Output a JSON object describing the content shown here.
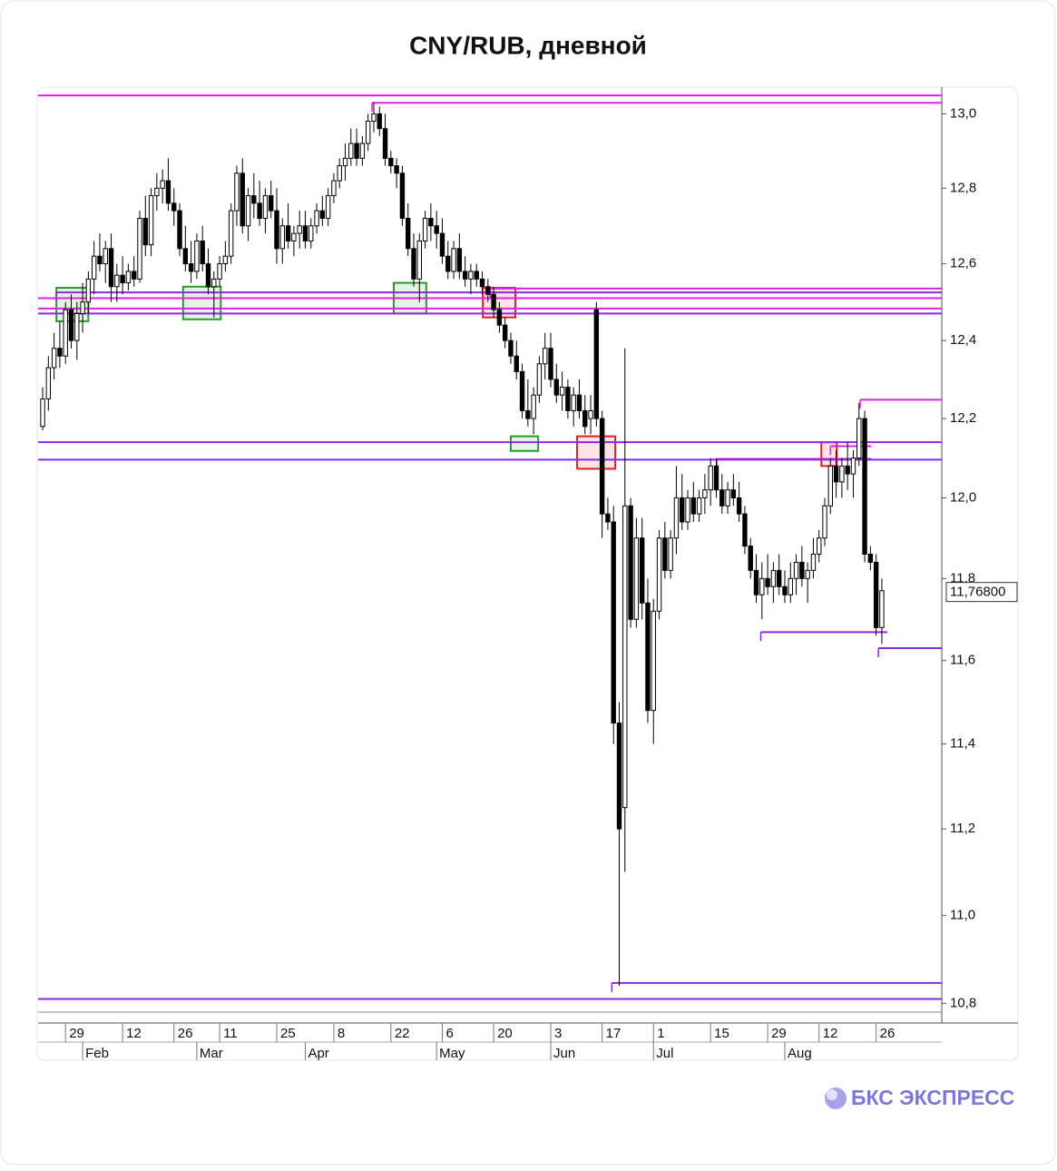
{
  "chart_data": {
    "type": "candlestick",
    "title": "CNY/RUB, дневной",
    "brand": "БКС ЭКСПРЕСС",
    "log_scale": true,
    "up_color": "#ffffff",
    "down_color": "#000000",
    "ylim": [
      10.76,
      13.07
    ],
    "xlim": [
      -0.8,
      157.5
    ],
    "yticks": [
      {
        "value": 10.8,
        "label": "10,8"
      },
      {
        "value": 11.0,
        "label": "11,0"
      },
      {
        "value": 11.2,
        "label": "11,2"
      },
      {
        "value": 11.4,
        "label": "11,4"
      },
      {
        "value": 11.6,
        "label": "11,6"
      },
      {
        "value": 11.8,
        "label": "11,8"
      },
      {
        "value": 12.0,
        "label": "12,0"
      },
      {
        "value": 12.2,
        "label": "12,2"
      },
      {
        "value": 12.4,
        "label": "12,4"
      },
      {
        "value": 12.6,
        "label": "12,6"
      },
      {
        "value": 12.8,
        "label": "12,8"
      },
      {
        "value": 13.0,
        "label": "13,0"
      }
    ],
    "xticks": [
      {
        "value": 4,
        "label": "29"
      },
      {
        "value": 14,
        "label": "12"
      },
      {
        "value": 23,
        "label": "26"
      },
      {
        "value": 31,
        "label": "11"
      },
      {
        "value": 41,
        "label": "25"
      },
      {
        "value": 51,
        "label": "8"
      },
      {
        "value": 61,
        "label": "22"
      },
      {
        "value": 70,
        "label": "6"
      },
      {
        "value": 79,
        "label": "20"
      },
      {
        "value": 89,
        "label": "3"
      },
      {
        "value": 98,
        "label": "17"
      },
      {
        "value": 107,
        "label": "1"
      },
      {
        "value": 117,
        "label": "15"
      },
      {
        "value": 127,
        "label": "29"
      },
      {
        "value": 136,
        "label": "12"
      },
      {
        "value": 146,
        "label": "26"
      }
    ],
    "month_ticks": [
      {
        "value": 7,
        "label": "Feb"
      },
      {
        "value": 27,
        "label": "Mar"
      },
      {
        "value": 46,
        "label": "Apr"
      },
      {
        "value": 69,
        "label": "May"
      },
      {
        "value": 89,
        "label": "Jun"
      },
      {
        "value": 107,
        "label": "Jul"
      },
      {
        "value": 130,
        "label": "Aug"
      }
    ],
    "last_price": {
      "value": 11.768,
      "label": "11,76800"
    },
    "open": [
      12.18,
      12.25,
      12.33,
      12.38,
      12.36,
      12.48,
      12.4,
      12.47,
      12.5,
      12.56,
      12.62,
      12.6,
      12.64,
      12.54,
      12.57,
      12.55,
      12.58,
      12.56,
      12.72,
      12.65,
      12.78,
      12.8,
      12.82,
      12.76,
      12.74,
      12.64,
      12.6,
      12.58,
      12.66,
      12.6,
      12.54,
      12.56,
      12.6,
      12.62,
      12.74,
      12.84,
      12.7,
      12.78,
      12.76,
      12.72,
      12.78,
      12.74,
      12.64,
      12.7,
      12.66,
      12.68,
      12.7,
      12.66,
      12.7,
      12.74,
      12.72,
      12.78,
      12.82,
      12.86,
      12.88,
      12.92,
      12.88,
      12.92,
      12.98,
      13.0,
      12.96,
      12.88,
      12.86,
      12.84,
      12.72,
      12.64,
      12.56,
      12.66,
      12.72,
      12.7,
      12.68,
      12.62,
      12.58,
      12.64,
      12.58,
      12.56,
      12.58,
      12.56,
      12.54,
      12.52,
      12.48,
      12.44,
      12.4,
      12.36,
      12.32,
      12.22,
      12.2,
      12.26,
      12.34,
      12.38,
      12.3,
      12.26,
      12.28,
      12.22,
      12.26,
      12.22,
      12.2,
      12.48,
      12.2,
      11.96,
      11.94,
      11.45,
      11.25,
      11.98,
      11.7,
      11.9,
      11.74,
      11.48,
      11.72,
      11.9,
      11.82,
      11.9,
      12.0,
      11.94,
      12.0,
      11.96,
      12.0,
      12.02,
      12.08,
      12.02,
      11.98,
      12.02,
      12.0,
      11.96,
      11.88,
      11.82,
      11.76,
      11.8,
      11.78,
      11.82,
      11.78,
      11.76,
      11.8,
      11.84,
      11.8,
      11.82,
      11.86,
      11.9,
      11.98,
      12.08,
      12.04,
      12.08,
      12.06,
      12.1,
      12.2,
      11.86,
      11.84,
      11.68
    ],
    "high": [
      12.28,
      12.36,
      12.42,
      12.45,
      12.5,
      12.52,
      12.5,
      12.55,
      12.58,
      12.66,
      12.68,
      12.66,
      12.68,
      12.6,
      12.62,
      12.6,
      12.62,
      12.74,
      12.78,
      12.8,
      12.84,
      12.85,
      12.88,
      12.8,
      12.76,
      12.7,
      12.66,
      12.68,
      12.7,
      12.64,
      12.58,
      12.62,
      12.66,
      12.76,
      12.86,
      12.88,
      12.8,
      12.84,
      12.82,
      12.8,
      12.82,
      12.8,
      12.72,
      12.76,
      12.7,
      12.74,
      12.74,
      12.72,
      12.76,
      12.78,
      12.8,
      12.84,
      12.88,
      12.92,
      12.96,
      12.96,
      12.94,
      13.0,
      13.03,
      13.02,
      13.0,
      12.9,
      12.88,
      12.86,
      12.76,
      12.68,
      12.68,
      12.74,
      12.76,
      12.74,
      12.72,
      12.66,
      12.66,
      12.68,
      12.62,
      12.6,
      12.6,
      12.58,
      12.56,
      12.54,
      12.5,
      12.46,
      12.42,
      12.4,
      12.34,
      12.3,
      12.28,
      12.36,
      12.42,
      12.42,
      12.34,
      12.32,
      12.3,
      12.28,
      12.3,
      12.26,
      12.26,
      12.5,
      12.22,
      12.0,
      11.98,
      11.5,
      12.38,
      12.0,
      11.95,
      11.95,
      11.8,
      11.75,
      11.92,
      11.94,
      11.92,
      12.08,
      12.06,
      12.02,
      12.04,
      12.02,
      12.06,
      12.1,
      12.1,
      12.06,
      12.04,
      12.06,
      12.04,
      11.98,
      11.9,
      11.86,
      11.84,
      11.86,
      11.84,
      11.86,
      11.82,
      11.84,
      11.86,
      11.88,
      11.84,
      11.9,
      11.92,
      12.0,
      12.1,
      12.12,
      12.1,
      12.14,
      12.12,
      12.24,
      12.22,
      11.88,
      11.86,
      11.8
    ],
    "low": [
      12.17,
      12.22,
      12.3,
      12.33,
      12.34,
      12.38,
      12.35,
      12.42,
      12.47,
      12.52,
      12.58,
      12.55,
      12.5,
      12.5,
      12.52,
      12.53,
      12.54,
      12.55,
      12.62,
      12.62,
      12.74,
      12.76,
      12.74,
      12.7,
      12.62,
      12.58,
      12.55,
      12.56,
      12.58,
      12.52,
      12.46,
      12.54,
      12.58,
      12.6,
      12.7,
      12.68,
      12.66,
      12.72,
      12.7,
      12.68,
      12.72,
      12.6,
      12.6,
      12.64,
      12.62,
      12.64,
      12.64,
      12.64,
      12.68,
      12.7,
      12.7,
      12.76,
      12.8,
      12.82,
      12.86,
      12.86,
      12.86,
      12.9,
      12.95,
      12.94,
      12.86,
      12.84,
      12.8,
      12.7,
      12.62,
      12.54,
      12.5,
      12.64,
      12.66,
      12.64,
      12.6,
      12.56,
      12.56,
      12.56,
      12.54,
      12.52,
      12.54,
      12.52,
      12.5,
      12.46,
      12.42,
      12.38,
      12.34,
      12.3,
      12.2,
      12.18,
      12.16,
      12.24,
      12.3,
      12.28,
      12.24,
      12.22,
      12.2,
      12.18,
      12.2,
      12.16,
      12.16,
      12.18,
      11.9,
      11.92,
      11.4,
      10.84,
      11.1,
      11.68,
      11.68,
      11.7,
      11.45,
      11.4,
      11.7,
      11.8,
      11.8,
      11.86,
      11.92,
      11.92,
      11.94,
      11.94,
      11.96,
      11.98,
      12.0,
      11.96,
      11.96,
      11.98,
      11.94,
      11.86,
      11.8,
      11.74,
      11.7,
      11.76,
      11.74,
      11.76,
      11.74,
      11.74,
      11.76,
      11.78,
      11.74,
      11.8,
      11.84,
      11.88,
      11.96,
      12.0,
      12.0,
      12.02,
      12.0,
      12.08,
      11.84,
      11.82,
      11.66,
      11.64
    ],
    "close": [
      12.25,
      12.33,
      12.38,
      12.36,
      12.48,
      12.4,
      12.47,
      12.5,
      12.56,
      12.62,
      12.6,
      12.64,
      12.54,
      12.57,
      12.55,
      12.58,
      12.56,
      12.72,
      12.65,
      12.78,
      12.8,
      12.82,
      12.76,
      12.74,
      12.64,
      12.6,
      12.58,
      12.66,
      12.6,
      12.54,
      12.56,
      12.6,
      12.62,
      12.74,
      12.84,
      12.7,
      12.78,
      12.76,
      12.72,
      12.78,
      12.74,
      12.64,
      12.7,
      12.66,
      12.68,
      12.7,
      12.66,
      12.7,
      12.74,
      12.72,
      12.78,
      12.82,
      12.86,
      12.88,
      12.92,
      12.88,
      12.92,
      12.98,
      13.0,
      12.96,
      12.88,
      12.86,
      12.84,
      12.72,
      12.64,
      12.56,
      12.66,
      12.72,
      12.7,
      12.68,
      12.62,
      12.58,
      12.64,
      12.58,
      12.56,
      12.58,
      12.56,
      12.54,
      12.52,
      12.48,
      12.44,
      12.4,
      12.36,
      12.32,
      12.22,
      12.2,
      12.26,
      12.34,
      12.38,
      12.3,
      12.26,
      12.28,
      12.22,
      12.26,
      12.22,
      12.18,
      12.22,
      12.2,
      11.96,
      11.94,
      11.45,
      11.2,
      11.98,
      11.7,
      11.9,
      11.74,
      11.48,
      11.72,
      11.9,
      11.82,
      11.9,
      12.0,
      11.94,
      12.0,
      11.96,
      12.0,
      12.02,
      12.08,
      12.02,
      11.98,
      12.02,
      12.0,
      11.96,
      11.88,
      11.82,
      11.76,
      11.8,
      11.78,
      11.82,
      11.78,
      11.76,
      11.8,
      11.84,
      11.8,
      11.82,
      11.86,
      11.9,
      11.98,
      12.08,
      12.04,
      12.08,
      12.06,
      12.1,
      12.2,
      11.86,
      11.84,
      11.68,
      11.77
    ],
    "levels": [
      {
        "value": 13.05,
        "color": "#e020e0",
        "from": null,
        "to": null
      },
      {
        "value": 13.03,
        "color": "#e020e0",
        "from": 57.7,
        "to": null
      },
      {
        "value": 12.535,
        "color": "#e020e0",
        "from": 78.4,
        "to": null
      },
      {
        "value": 12.525,
        "color": "#8a2be2",
        "from": 2.4,
        "to": null
      },
      {
        "value": 12.51,
        "color": "#e020e0",
        "from": null,
        "to": null
      },
      {
        "value": 12.483,
        "color": "#e020e0",
        "from": null,
        "to": null
      },
      {
        "value": 12.47,
        "color": "#8a2be2",
        "from": null,
        "to": null
      },
      {
        "value": 12.248,
        "color": "#e020e0",
        "from": 143.2,
        "to": null
      },
      {
        "value": 12.14,
        "color": "#8a2be2",
        "from": null,
        "to": null
      },
      {
        "value": 12.13,
        "color": "#e020e0",
        "from": 138,
        "to": 145.2
      },
      {
        "value": 12.098,
        "color": "#e020e0",
        "from": 118.1,
        "to": 145.2
      },
      {
        "value": 12.096,
        "color": "#8a2be2",
        "from": null,
        "to": null
      },
      {
        "value": 11.669,
        "color": "#8a2be2",
        "from": 125.8,
        "to": 148
      },
      {
        "value": 11.63,
        "color": "#8a2be2",
        "from": 146.4,
        "to": null
      },
      {
        "value": 10.846,
        "color": "#8a2be2",
        "from": 99.7,
        "to": null
      },
      {
        "value": 10.81,
        "color": "#8a2be2",
        "from": null,
        "to": null
      }
    ],
    "boxes": [
      {
        "from": 2.4,
        "to": 8,
        "top": 12.537,
        "bottom": 12.45,
        "color": "#2a9a2a"
      },
      {
        "from": 24.6,
        "to": 31.2,
        "top": 12.54,
        "bottom": 12.455,
        "color": "#2a9a2a"
      },
      {
        "from": 61.5,
        "to": 67.2,
        "top": 12.55,
        "bottom": 12.47,
        "color": "#2a9a2a"
      },
      {
        "from": 77.1,
        "to": 82.8,
        "top": 12.537,
        "bottom": 12.46,
        "color": "#e02020"
      },
      {
        "from": 82,
        "to": 86.8,
        "top": 12.155,
        "bottom": 12.118,
        "color": "#2a9a2a"
      },
      {
        "from": 93.6,
        "to": 100.3,
        "top": 12.155,
        "bottom": 12.073,
        "color": "#e02020"
      },
      {
        "from": 136.4,
        "to": 139.1,
        "top": 12.14,
        "bottom": 12.08,
        "color": "#e02020"
      }
    ]
  }
}
